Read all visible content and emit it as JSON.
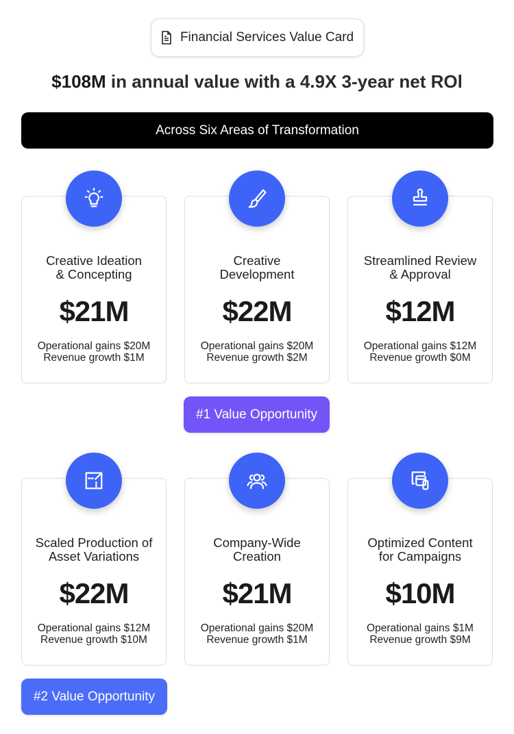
{
  "header": {
    "title": "Financial Services Value Card",
    "icon": "document-icon"
  },
  "headline": {
    "bold": "$108M",
    "rest": " in annual value with a 4.9X 3-year net ROl"
  },
  "banner": "Across Six Areas of Transformation",
  "colors": {
    "circle": "#3d64f6",
    "badge1": "#7354f6",
    "badge2": "#4a6cf7"
  },
  "cards": [
    {
      "title1": "Creative Ideation",
      "title2": "& Concepting",
      "value": "$21M",
      "op": "Operational gains $20M",
      "rev": "Revenue growth $1M",
      "icon": "lightbulb-icon"
    },
    {
      "title1": "Creative",
      "title2": "Development",
      "value": "$22M",
      "op": "Operational gains $20M",
      "rev": "Revenue growth $2M",
      "icon": "brush-icon"
    },
    {
      "title1": "Streamlined Review",
      "title2": "& Approval",
      "value": "$12M",
      "op": "Operational gains $12M",
      "rev": "Revenue growth $0M",
      "icon": "stamp-icon"
    },
    {
      "title1": "Scaled Production of",
      "title2": "Asset Variations",
      "value": "$22M",
      "op": "Operational gains $12M",
      "rev": "Revenue growth $10M",
      "icon": "resize-icon"
    },
    {
      "title1": "Company-Wide",
      "title2": "Creation",
      "value": "$21M",
      "op": "Operational gains $20M",
      "rev": "Revenue growth $1M",
      "icon": "users-icon"
    },
    {
      "title1": "Optimized Content",
      "title2": "for Campaigns",
      "value": "$10M",
      "op": "Operational gains $1M",
      "rev": "Revenue growth $9M",
      "icon": "devices-icon"
    }
  ],
  "badges": {
    "first": "#1 Value Opportunity",
    "second": "#2 Value Opportunity"
  }
}
